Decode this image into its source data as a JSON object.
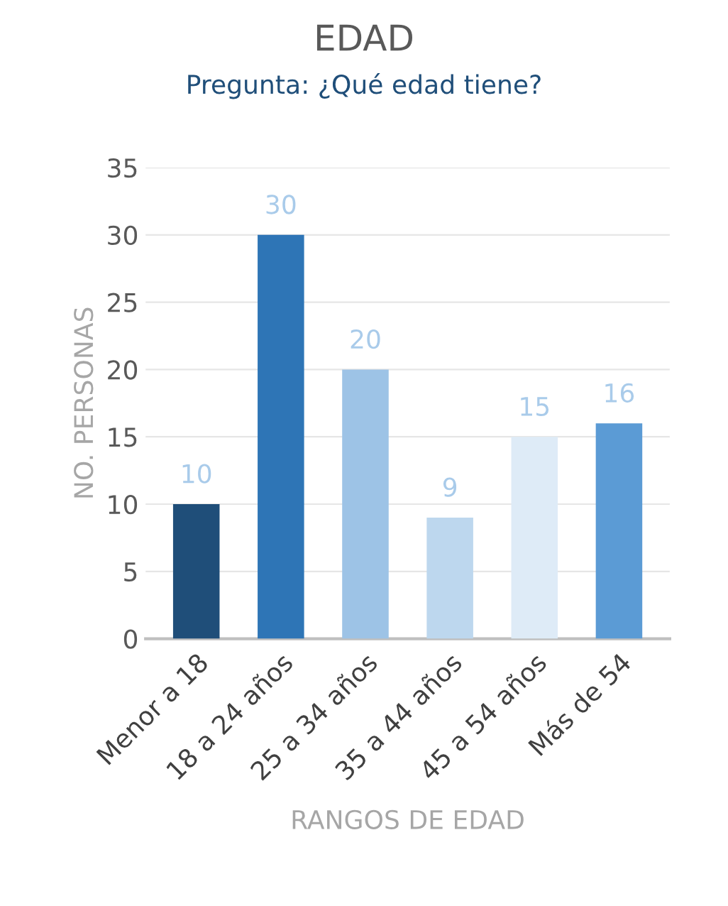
{
  "chart_data": {
    "type": "bar",
    "title": "EDAD",
    "subtitle": "Pregunta: ¿Qué edad tiene?",
    "xlabel": "RANGOS DE EDAD",
    "ylabel": "NO. PERSONAS",
    "categories": [
      "Menor a 18",
      "18 a 24 años",
      "25 a 34 años",
      "35 a 44 años",
      "45 a 54 años",
      "Más de 54"
    ],
    "values": [
      10,
      30,
      20,
      9,
      15,
      16
    ],
    "colors": [
      "#1f4e79",
      "#2e75b6",
      "#9dc3e6",
      "#bdd7ee",
      "#deebf7",
      "#5b9bd5"
    ],
    "ylim": [
      0,
      35
    ],
    "yticks": [
      0,
      5,
      10,
      15,
      20,
      25,
      30,
      35
    ],
    "grid": "y",
    "data_labels": true
  }
}
